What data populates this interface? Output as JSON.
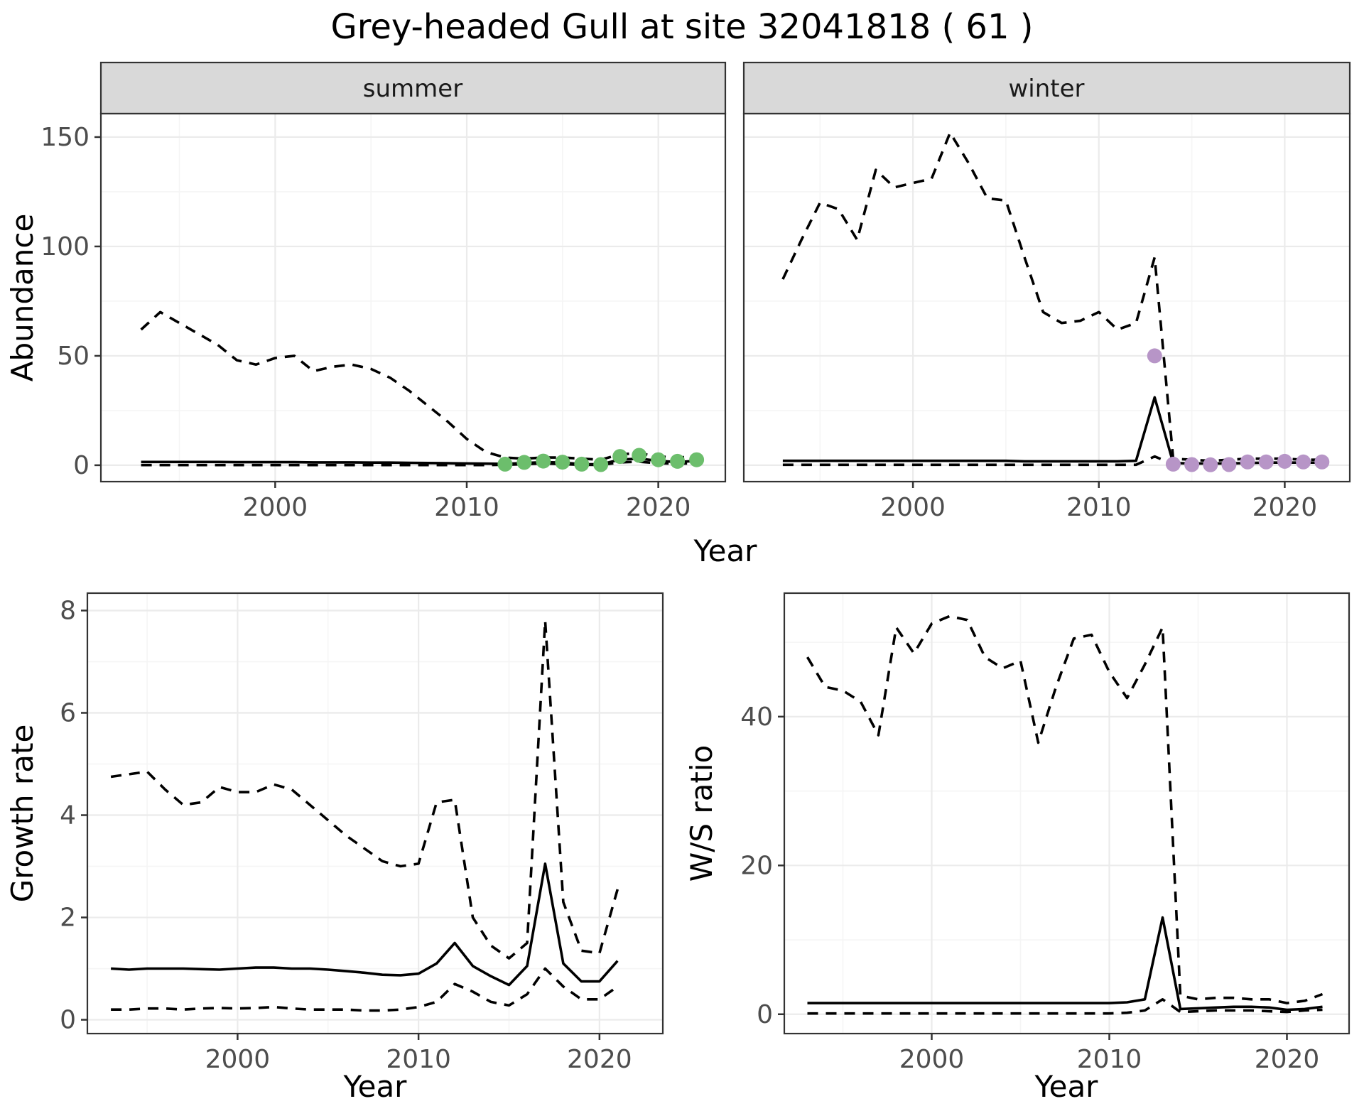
{
  "title": "Grey-headed Gull at site 32041818 ( 61 )",
  "colors": {
    "summer_points": "#6cbe6c",
    "winter_points": "#b795c7",
    "line": "#000000",
    "grid_major": "#ebebeb",
    "grid_minor": "#f5f5f5",
    "strip_fill": "#d9d9d9",
    "panel_border": "#333333",
    "tick_text": "#4d4d4d"
  },
  "chart_data": [
    {
      "id": "abundance-summer",
      "type": "line",
      "facet": "summer",
      "xlabel": "Year",
      "ylabel": "Abundance",
      "xlim": [
        1990.9,
        2023.5
      ],
      "ylim": [
        -7.5,
        160.7
      ],
      "xticks": [
        2000,
        2010,
        2020
      ],
      "xminor": [
        1995,
        2005,
        2015
      ],
      "yticks": [
        0,
        50,
        100,
        150
      ],
      "yminor": [
        25,
        75,
        125
      ],
      "grid": true,
      "legend": "none",
      "x": [
        1993,
        1994,
        1995,
        1996,
        1997,
        1998,
        1999,
        2000,
        2001,
        2002,
        2003,
        2004,
        2005,
        2006,
        2007,
        2008,
        2009,
        2010,
        2011,
        2012,
        2013,
        2014,
        2015,
        2016,
        2017,
        2018,
        2019,
        2020,
        2021,
        2022
      ],
      "series": [
        {
          "name": "upper CI",
          "style": "dashed",
          "values": [
            62,
            70,
            65,
            60,
            55,
            48,
            46,
            49,
            50,
            43,
            45,
            46,
            44,
            40,
            34,
            27,
            20,
            12,
            6,
            3.5,
            3,
            3.5,
            3.5,
            3,
            2.5,
            5,
            5.5,
            4,
            3.5,
            4
          ]
        },
        {
          "name": "median",
          "style": "solid",
          "values": [
            1.5,
            1.5,
            1.5,
            1.5,
            1.5,
            1.4,
            1.4,
            1.4,
            1.4,
            1.3,
            1.3,
            1.3,
            1.2,
            1.2,
            1.1,
            1.0,
            0.9,
            0.8,
            0.7,
            0.6,
            1.0,
            1.4,
            1.2,
            0.5,
            0.4,
            2.6,
            3.0,
            2.0,
            1.4,
            2.0
          ]
        },
        {
          "name": "lower CI",
          "style": "dashed",
          "values": [
            0.05,
            0.05,
            0.05,
            0.05,
            0.05,
            0.05,
            0.05,
            0.05,
            0.05,
            0.05,
            0.05,
            0.05,
            0.05,
            0.05,
            0.05,
            0.05,
            0.05,
            0.05,
            0.05,
            0.2,
            0.5,
            0.8,
            0.5,
            0.2,
            0.1,
            1.3,
            1.6,
            0.9,
            0.7,
            0.9
          ]
        }
      ],
      "points": {
        "name": "summer counts",
        "color": "#6cbe6c",
        "x": [
          2012,
          2013,
          2014,
          2015,
          2016,
          2017,
          2018,
          2019,
          2020,
          2021,
          2022
        ],
        "y": [
          0.5,
          1.3,
          1.9,
          1.4,
          0.5,
          0.3,
          4.0,
          4.5,
          2.5,
          1.8,
          2.5
        ]
      }
    },
    {
      "id": "abundance-winter",
      "type": "line",
      "facet": "winter",
      "xlabel": "Year",
      "ylabel": "Abundance",
      "xlim": [
        1990.9,
        2023.5
      ],
      "ylim": [
        -7.5,
        160.7
      ],
      "xticks": [
        2000,
        2010,
        2020
      ],
      "xminor": [
        1995,
        2005,
        2015
      ],
      "yticks": [
        0,
        50,
        100,
        150
      ],
      "yminor": [
        25,
        75,
        125
      ],
      "grid": true,
      "legend": "none",
      "x": [
        1993,
        1994,
        1995,
        1996,
        1997,
        1998,
        1999,
        2000,
        2001,
        2002,
        2003,
        2004,
        2005,
        2006,
        2007,
        2008,
        2009,
        2010,
        2011,
        2012,
        2013,
        2014,
        2015,
        2016,
        2017,
        2018,
        2019,
        2020,
        2021,
        2022
      ],
      "series": [
        {
          "name": "upper CI",
          "style": "dashed",
          "values": [
            85,
            103,
            120,
            117,
            103,
            135,
            127,
            129,
            131,
            152,
            138,
            122,
            121,
            95,
            70,
            65,
            66,
            70,
            62,
            65,
            95,
            3,
            2.5,
            2,
            2.5,
            3,
            3,
            3,
            2.5,
            2.5
          ]
        },
        {
          "name": "median",
          "style": "solid",
          "values": [
            2,
            2,
            2,
            2,
            2,
            2,
            2,
            2,
            2,
            2,
            2,
            2,
            2,
            1.8,
            1.8,
            1.8,
            1.8,
            1.8,
            1.8,
            2,
            31,
            1,
            0.8,
            0.8,
            0.8,
            1,
            1.2,
            1.2,
            1.2,
            1.2
          ]
        },
        {
          "name": "lower CI",
          "style": "dashed",
          "values": [
            0.2,
            0.2,
            0.2,
            0.2,
            0.2,
            0.2,
            0.2,
            0.2,
            0.2,
            0.2,
            0.2,
            0.2,
            0.2,
            0.2,
            0.2,
            0.2,
            0.2,
            0.2,
            0.2,
            0.2,
            4,
            0.5,
            0.4,
            0.3,
            0.4,
            0.5,
            0.6,
            0.6,
            0.6,
            0.6
          ]
        }
      ],
      "points": {
        "name": "winter counts",
        "color": "#b795c7",
        "x": [
          2013,
          2014,
          2015,
          2016,
          2017,
          2018,
          2019,
          2020,
          2021,
          2022
        ],
        "y": [
          50,
          0.5,
          0.3,
          0.2,
          0.3,
          1.5,
          1.5,
          1.8,
          1.5,
          1.5
        ]
      }
    },
    {
      "id": "growth-rate",
      "type": "line",
      "facet": null,
      "xlabel": "Year",
      "ylabel": "Growth rate",
      "xlim": [
        1991.7,
        2023.5
      ],
      "ylim": [
        -0.27,
        8.34
      ],
      "xticks": [
        2000,
        2010,
        2020
      ],
      "xminor": [
        1995,
        2005,
        2015
      ],
      "yticks": [
        0,
        2,
        4,
        6,
        8
      ],
      "yminor": [
        1,
        3,
        5,
        7
      ],
      "grid": true,
      "legend": "none",
      "x": [
        1993,
        1994,
        1995,
        1996,
        1997,
        1998,
        1999,
        2000,
        2001,
        2002,
        2003,
        2004,
        2005,
        2006,
        2007,
        2008,
        2009,
        2010,
        2011,
        2012,
        2013,
        2014,
        2015,
        2016,
        2017,
        2018,
        2019,
        2020,
        2021
      ],
      "series": [
        {
          "name": "upper CI",
          "style": "dashed",
          "values": [
            4.75,
            4.8,
            4.85,
            4.5,
            4.2,
            4.25,
            4.55,
            4.45,
            4.45,
            4.6,
            4.5,
            4.2,
            3.9,
            3.6,
            3.35,
            3.1,
            3.0,
            3.05,
            4.25,
            4.3,
            2.0,
            1.45,
            1.2,
            1.5,
            7.8,
            2.3,
            1.35,
            1.3,
            2.55
          ]
        },
        {
          "name": "median",
          "style": "solid",
          "values": [
            1.0,
            0.98,
            1.0,
            1.0,
            1.0,
            0.99,
            0.98,
            1.0,
            1.02,
            1.02,
            1.0,
            1.0,
            0.98,
            0.95,
            0.92,
            0.88,
            0.87,
            0.9,
            1.1,
            1.5,
            1.05,
            0.85,
            0.68,
            1.05,
            3.05,
            1.1,
            0.75,
            0.75,
            1.15
          ]
        },
        {
          "name": "lower CI",
          "style": "dashed",
          "values": [
            0.2,
            0.2,
            0.22,
            0.22,
            0.2,
            0.22,
            0.23,
            0.22,
            0.23,
            0.25,
            0.22,
            0.2,
            0.2,
            0.2,
            0.18,
            0.18,
            0.2,
            0.25,
            0.35,
            0.7,
            0.55,
            0.35,
            0.28,
            0.5,
            1.0,
            0.65,
            0.4,
            0.4,
            0.65
          ]
        }
      ],
      "points": null
    },
    {
      "id": "ws-ratio",
      "type": "line",
      "facet": null,
      "xlabel": "Year",
      "ylabel": "W/S ratio",
      "xlim": [
        1991.7,
        2023.5
      ],
      "ylim": [
        -2.6,
        56.6
      ],
      "xticks": [
        2000,
        2010,
        2020
      ],
      "xminor": [
        1995,
        2005,
        2015
      ],
      "yticks": [
        0,
        20,
        40
      ],
      "yminor": [
        10,
        30,
        50
      ],
      "grid": true,
      "legend": "none",
      "x": [
        1993,
        1994,
        1995,
        1996,
        1997,
        1998,
        1999,
        2000,
        2001,
        2002,
        2003,
        2004,
        2005,
        2006,
        2007,
        2008,
        2009,
        2010,
        2011,
        2012,
        2013,
        2014,
        2015,
        2016,
        2017,
        2018,
        2019,
        2020,
        2021,
        2022
      ],
      "series": [
        {
          "name": "upper CI",
          "style": "dashed",
          "values": [
            48,
            44,
            43.5,
            42,
            37.5,
            52,
            48.5,
            52.5,
            53.5,
            53,
            48,
            46.5,
            47.5,
            36.5,
            44,
            50.5,
            51,
            46,
            42.5,
            47,
            52,
            2.5,
            2,
            2.2,
            2.2,
            2,
            2,
            1.5,
            1.8,
            2.7
          ]
        },
        {
          "name": "median",
          "style": "solid",
          "values": [
            1.5,
            1.5,
            1.5,
            1.5,
            1.5,
            1.5,
            1.5,
            1.5,
            1.5,
            1.5,
            1.5,
            1.5,
            1.5,
            1.5,
            1.5,
            1.5,
            1.5,
            1.5,
            1.6,
            2,
            13,
            0.7,
            0.8,
            0.9,
            1.0,
            1.0,
            0.9,
            0.6,
            0.7,
            1.0
          ]
        },
        {
          "name": "lower CI",
          "style": "dashed",
          "values": [
            0.1,
            0.1,
            0.1,
            0.1,
            0.1,
            0.1,
            0.1,
            0.1,
            0.1,
            0.1,
            0.1,
            0.1,
            0.1,
            0.1,
            0.1,
            0.1,
            0.1,
            0.1,
            0.2,
            0.5,
            2,
            0.3,
            0.4,
            0.5,
            0.5,
            0.5,
            0.4,
            0.3,
            0.5,
            0.6
          ]
        }
      ],
      "points": null
    }
  ]
}
